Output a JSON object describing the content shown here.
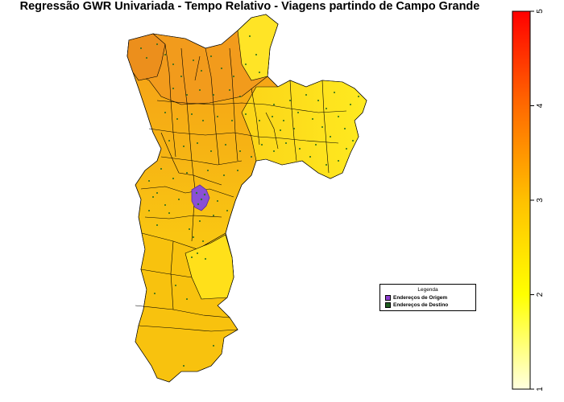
{
  "title": "Regressão GWR Univariada - Tempo Relativo - Viagens partindo de Campo Grande",
  "legend": {
    "title": "Legenda",
    "items": [
      {
        "label": "Endereços de Origem",
        "color": "#8e3fd0"
      },
      {
        "label": "Endereços de Destino",
        "color": "#1f5f1f"
      }
    ]
  },
  "colorbar": {
    "ticks": [
      "1",
      "2",
      "3",
      "4",
      "5"
    ],
    "range": [
      1,
      5
    ],
    "colors": [
      "#ffffe0",
      "#ffff00",
      "#ffa500",
      "#ff0000"
    ]
  },
  "colors": {
    "district_north": "#f0a020",
    "district_center": "#f7bb10",
    "district_east": "#ffe020",
    "district_south": "#f8cc10",
    "border": "#000000"
  }
}
